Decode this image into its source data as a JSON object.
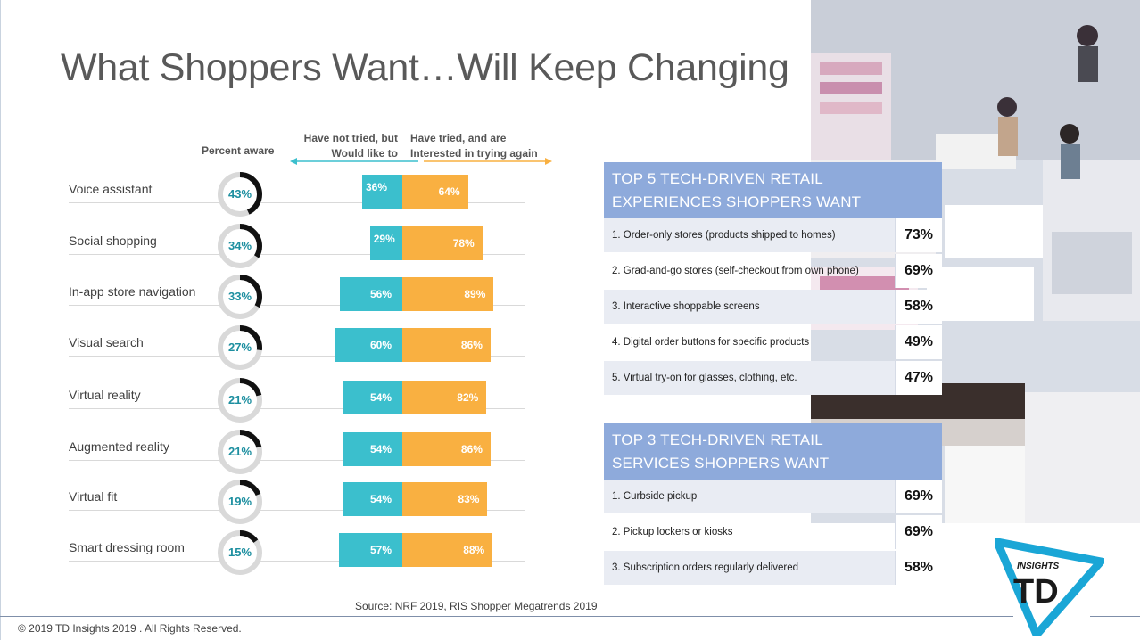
{
  "title": "What Shoppers Want…Will Keep Changing",
  "chart_data": {
    "type": "bar",
    "header_percent_aware": "Percent aware",
    "header_not_tried": [
      "Have not tried, but",
      "Would like to"
    ],
    "header_tried": [
      "Have tried, and are",
      "Interested in trying again"
    ],
    "categories": [
      "Voice assistant",
      "Social shopping",
      "In-app store navigation",
      "Visual search",
      "Virtual reality",
      "Augmented reality",
      "Virtual fit",
      "Smart dressing room"
    ],
    "aware": [
      43,
      34,
      33,
      27,
      21,
      21,
      19,
      15
    ],
    "aware_labels": [
      "43%",
      "34%",
      "33%",
      "27%",
      "21%",
      "21%",
      "19%",
      "15%"
    ],
    "series": [
      {
        "name": "Have not tried, but Would like to",
        "values": [
          36,
          29,
          56,
          60,
          54,
          54,
          54,
          57
        ],
        "labels": [
          "36%",
          "29%",
          "56%",
          "60%",
          "54%",
          "54%",
          "54%",
          "57%"
        ]
      },
      {
        "name": "Have tried, and are Interested in trying again",
        "values": [
          64,
          78,
          89,
          86,
          82,
          86,
          83,
          88
        ],
        "labels": [
          "64%",
          "78%",
          "89%",
          "86%",
          "82%",
          "86%",
          "83%",
          "88%"
        ]
      }
    ]
  },
  "panels": {
    "experiences": {
      "title": [
        "TOP 5 TECH-DRIVEN RETAIL",
        "EXPERIENCES SHOPPERS WANT"
      ],
      "items": [
        {
          "text": "1.  Order-only stores (products shipped to homes)",
          "value": "73%"
        },
        {
          "text": "2.  Grad-and-go stores (self-checkout from own phone)",
          "value": "69%"
        },
        {
          "text": "3.  Interactive shoppable screens",
          "value": "58%"
        },
        {
          "text": "4.  Digital order buttons for specific products",
          "value": "49%"
        },
        {
          "text": "5.  Virtual try-on for glasses, clothing, etc.",
          "value": "47%"
        }
      ]
    },
    "services": {
      "title": [
        "TOP 3 TECH-DRIVEN RETAIL",
        "SERVICES SHOPPERS WANT"
      ],
      "items": [
        {
          "text": "1.  Curbside pickup",
          "value": "69%"
        },
        {
          "text": "2.  Pickup lockers or kiosks",
          "value": "69%"
        },
        {
          "text": "3.  Subscription orders regularly delivered",
          "value": "58%"
        }
      ]
    }
  },
  "source": "Source: NRF 2019, RIS Shopper Megatrends 2019",
  "copyright": "© 2019 TD Insights 2019 . All Rights Reserved.",
  "logo": {
    "top_text": "INSIGHTS",
    "letters": "TD"
  },
  "colors": {
    "blue": "#3bbfcd",
    "orange": "#f9b041",
    "panel": "#8eaadb",
    "donut": "#111111",
    "donut_track": "#d9d9d9"
  }
}
